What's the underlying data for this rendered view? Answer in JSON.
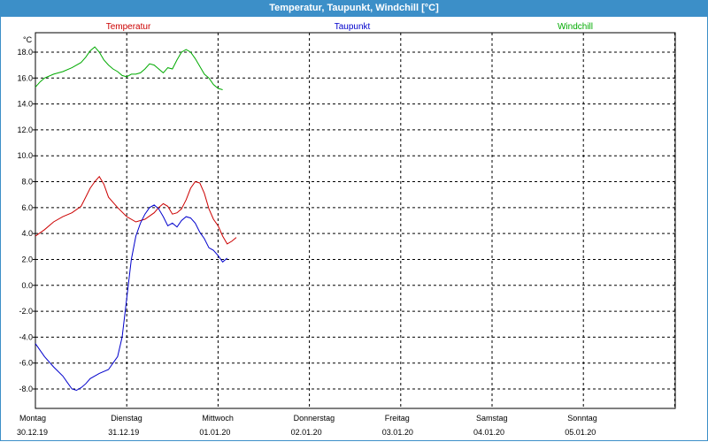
{
  "window": {
    "title": "Temperatur, Taupunkt, Windchill [°C]"
  },
  "chart_data": {
    "type": "line",
    "title": "Temperatur, Taupunkt, Windchill [°C]",
    "unit_label": "°C",
    "ylim": [
      -9.5,
      19.5
    ],
    "y_ticks": [
      "18.0",
      "16.0",
      "14.0",
      "12.0",
      "10.0",
      "8.0",
      "6.0",
      "4.0",
      "2.0",
      "0.0",
      "-2.0",
      "-4.0",
      "-6.0",
      "-8.0"
    ],
    "y_tick_values": [
      18,
      16,
      14,
      12,
      10,
      8,
      6,
      4,
      2,
      0,
      -2,
      -4,
      -6,
      -8
    ],
    "grid": true,
    "x_range_days": [
      0,
      7
    ],
    "x_days": [
      {
        "day": "Montag",
        "date": "30.12.19"
      },
      {
        "day": "Dienstag",
        "date": "31.12.19"
      },
      {
        "day": "Mittwoch",
        "date": "01.01.20"
      },
      {
        "day": "Donnerstag",
        "date": "02.01.20"
      },
      {
        "day": "Freitag",
        "date": "03.01.20"
      },
      {
        "day": "Samstag",
        "date": "04.01.20"
      },
      {
        "day": "Sonntag",
        "date": "05.01.20"
      }
    ],
    "series": [
      {
        "name": "Temperatur",
        "color": "#cc0000",
        "points": [
          [
            0,
            3.8
          ],
          [
            0.1,
            4.3
          ],
          [
            0.2,
            4.9
          ],
          [
            0.3,
            5.3
          ],
          [
            0.4,
            5.6
          ],
          [
            0.5,
            6.1
          ],
          [
            0.55,
            6.8
          ],
          [
            0.6,
            7.5
          ],
          [
            0.65,
            8.0
          ],
          [
            0.7,
            8.4
          ],
          [
            0.75,
            7.8
          ],
          [
            0.8,
            6.8
          ],
          [
            0.9,
            6.0
          ],
          [
            1.0,
            5.3
          ],
          [
            1.1,
            4.9
          ],
          [
            1.2,
            5.1
          ],
          [
            1.3,
            5.6
          ],
          [
            1.35,
            6.0
          ],
          [
            1.4,
            6.3
          ],
          [
            1.45,
            6.1
          ],
          [
            1.5,
            5.5
          ],
          [
            1.55,
            5.6
          ],
          [
            1.6,
            5.9
          ],
          [
            1.65,
            6.6
          ],
          [
            1.7,
            7.5
          ],
          [
            1.75,
            8.0
          ],
          [
            1.8,
            7.9
          ],
          [
            1.85,
            7.1
          ],
          [
            1.9,
            5.9
          ],
          [
            1.95,
            5.1
          ],
          [
            2.0,
            4.6
          ],
          [
            2.05,
            3.8
          ],
          [
            2.1,
            3.2
          ],
          [
            2.15,
            3.4
          ],
          [
            2.2,
            3.7
          ]
        ]
      },
      {
        "name": "Taupunkt",
        "color": "#0000cc",
        "points": [
          [
            0,
            -4.5
          ],
          [
            0.1,
            -5.5
          ],
          [
            0.2,
            -6.3
          ],
          [
            0.3,
            -7.0
          ],
          [
            0.35,
            -7.5
          ],
          [
            0.4,
            -8.0
          ],
          [
            0.45,
            -8.1
          ],
          [
            0.5,
            -7.9
          ],
          [
            0.55,
            -7.6
          ],
          [
            0.6,
            -7.2
          ],
          [
            0.7,
            -6.8
          ],
          [
            0.8,
            -6.5
          ],
          [
            0.85,
            -6.0
          ],
          [
            0.9,
            -5.5
          ],
          [
            0.95,
            -4.0
          ],
          [
            1.0,
            -1.0
          ],
          [
            1.05,
            2.0
          ],
          [
            1.1,
            3.8
          ],
          [
            1.15,
            4.8
          ],
          [
            1.2,
            5.5
          ],
          [
            1.25,
            6.0
          ],
          [
            1.3,
            6.2
          ],
          [
            1.35,
            5.9
          ],
          [
            1.4,
            5.3
          ],
          [
            1.45,
            4.6
          ],
          [
            1.5,
            4.8
          ],
          [
            1.55,
            4.5
          ],
          [
            1.6,
            5.0
          ],
          [
            1.65,
            5.3
          ],
          [
            1.7,
            5.2
          ],
          [
            1.75,
            4.8
          ],
          [
            1.8,
            4.1
          ],
          [
            1.85,
            3.6
          ],
          [
            1.9,
            2.9
          ],
          [
            1.95,
            2.7
          ],
          [
            2.0,
            2.3
          ],
          [
            2.05,
            1.8
          ],
          [
            2.1,
            2.1
          ]
        ]
      },
      {
        "name": "Windchill",
        "color": "#00aa00",
        "points": [
          [
            0,
            15.3
          ],
          [
            0.05,
            15.7
          ],
          [
            0.1,
            16.0
          ],
          [
            0.2,
            16.3
          ],
          [
            0.3,
            16.5
          ],
          [
            0.4,
            16.8
          ],
          [
            0.5,
            17.2
          ],
          [
            0.55,
            17.6
          ],
          [
            0.6,
            18.1
          ],
          [
            0.65,
            18.4
          ],
          [
            0.7,
            18.0
          ],
          [
            0.75,
            17.4
          ],
          [
            0.8,
            17.0
          ],
          [
            0.85,
            16.7
          ],
          [
            0.9,
            16.5
          ],
          [
            0.95,
            16.2
          ],
          [
            1.0,
            16.1
          ],
          [
            1.05,
            16.3
          ],
          [
            1.1,
            16.3
          ],
          [
            1.15,
            16.4
          ],
          [
            1.2,
            16.7
          ],
          [
            1.25,
            17.1
          ],
          [
            1.3,
            17.0
          ],
          [
            1.35,
            16.7
          ],
          [
            1.4,
            16.4
          ],
          [
            1.45,
            16.8
          ],
          [
            1.5,
            16.7
          ],
          [
            1.55,
            17.4
          ],
          [
            1.6,
            18.0
          ],
          [
            1.65,
            18.2
          ],
          [
            1.7,
            18.0
          ],
          [
            1.75,
            17.5
          ],
          [
            1.8,
            16.9
          ],
          [
            1.85,
            16.3
          ],
          [
            1.9,
            16.0
          ],
          [
            1.95,
            15.5
          ],
          [
            2.0,
            15.2
          ],
          [
            2.05,
            15.1
          ]
        ]
      }
    ]
  }
}
